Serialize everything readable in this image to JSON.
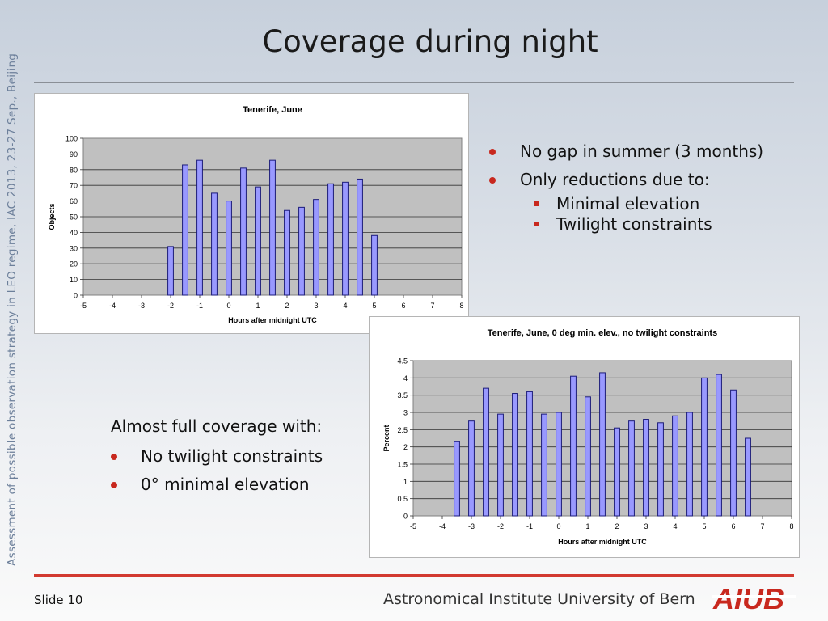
{
  "slide": {
    "title": "Coverage during night",
    "side_note": "Assessment of possible observation strategy in LEO regime, IAC 2013, 23-27 Sep., Beijing",
    "footer_slide": "Slide 10",
    "footer_institute": "Astronomical Institute University of Bern",
    "logo_text": "AIUB"
  },
  "bullets_top": [
    {
      "text": "No gap in summer (3 months)",
      "sub": []
    },
    {
      "text": "Only reductions due to:",
      "sub": [
        "Minimal elevation",
        "Twilight constraints"
      ]
    }
  ],
  "bullets_bottom": {
    "heading": "Almost full coverage with:",
    "items": [
      "No twilight constraints",
      "0° minimal elevation"
    ]
  },
  "colors": {
    "bar_fill": "#9999ff",
    "bar_stroke": "#1b1b7a",
    "plot_bg": "#c0c0c0",
    "bullet": "#c8281e",
    "footer_rule": "#d23a30",
    "logo": "#c8281e"
  },
  "chart_data": [
    {
      "type": "bar",
      "title": "Tenerife, June",
      "xlabel": "Hours after midnight UTC",
      "ylabel": "Objects",
      "xlim": [
        -5,
        8
      ],
      "xticks": [
        -5,
        -4,
        -3,
        -2,
        -1,
        0,
        1,
        2,
        3,
        4,
        5,
        6,
        7,
        8
      ],
      "ylim": [
        0,
        100
      ],
      "yticks": [
        0,
        10,
        20,
        30,
        40,
        50,
        60,
        70,
        80,
        90,
        100
      ],
      "grid": true,
      "x": [
        -2,
        -1.5,
        -1,
        -0.5,
        0,
        0.5,
        1,
        1.5,
        2,
        2.5,
        3,
        3.5,
        4,
        4.5,
        5
      ],
      "values": [
        31,
        83,
        86,
        65,
        60,
        81,
        69,
        86,
        54,
        56,
        61,
        71,
        72,
        74,
        38
      ]
    },
    {
      "type": "bar",
      "title": "Tenerife, June, 0 deg min. elev., no twilight constraints",
      "xlabel": "Hours after midnight UTC",
      "ylabel": "Percent",
      "xlim": [
        -5,
        8
      ],
      "xticks": [
        -5,
        -4,
        -3,
        -2,
        -1,
        0,
        1,
        2,
        3,
        4,
        5,
        6,
        7,
        8
      ],
      "ylim": [
        0,
        4.5
      ],
      "yticks": [
        0,
        0.5,
        1,
        1.5,
        2,
        2.5,
        3,
        3.5,
        4,
        4.5
      ],
      "grid": true,
      "x": [
        -3.5,
        -3,
        -2.5,
        -2,
        -1.5,
        -1,
        -0.5,
        0,
        0.5,
        1,
        1.5,
        2,
        2.5,
        3,
        3.5,
        4,
        4.5,
        5,
        5.5,
        6,
        6.5
      ],
      "values": [
        2.15,
        2.75,
        3.7,
        2.95,
        3.55,
        3.6,
        2.95,
        3.0,
        4.05,
        3.45,
        4.15,
        2.55,
        2.75,
        2.8,
        2.7,
        2.9,
        3.0,
        4.0,
        4.1,
        3.65,
        2.25
      ]
    }
  ]
}
